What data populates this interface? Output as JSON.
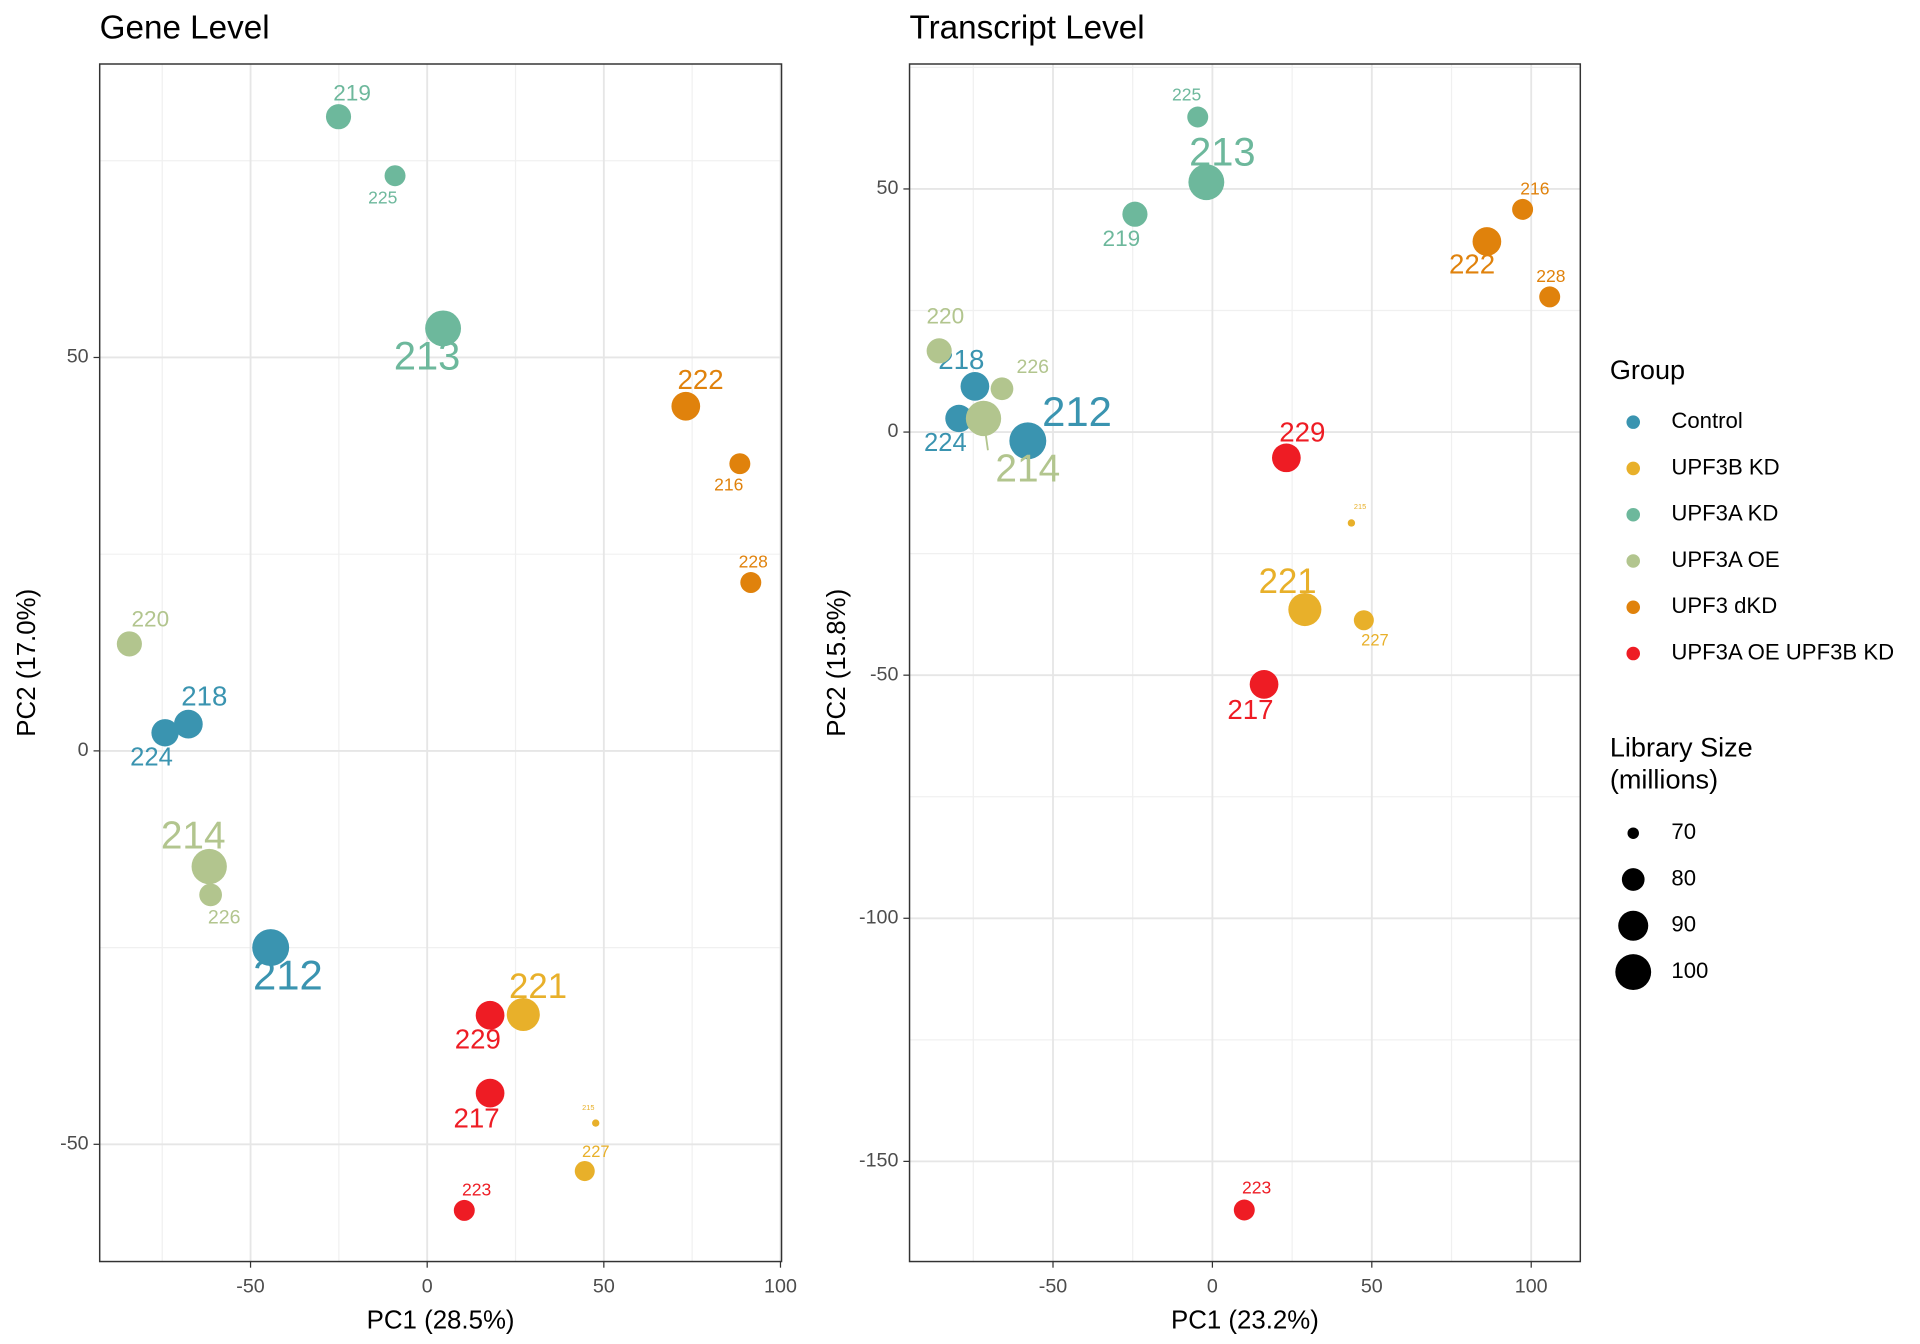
{
  "chart_data": [
    {
      "type": "scatter",
      "title": "Gene Level",
      "x_label": "PC1 (28.5%)",
      "y_label": "PC2 (17.0%)",
      "xlim": [
        -92.7,
        100.3
      ],
      "ylim": [
        -64.9,
        87.3
      ],
      "xticks": [
        -50,
        0,
        50,
        100
      ],
      "yticks": [
        -50,
        0,
        50
      ],
      "grid": true,
      "series": [
        {
          "name": "Control",
          "color": "#3a94b0",
          "labels": [
            "218",
            "224",
            "212"
          ],
          "x": [
            -67.6,
            -74.2,
            -44.3
          ],
          "y": [
            3.4,
            2.3,
            -25.0
          ],
          "size": [
            88,
            86,
            102
          ]
        },
        {
          "name": "UPF3B KD",
          "color": "#e8b02a",
          "labels": [
            "221",
            "215",
            "227"
          ],
          "x": [
            27.2,
            47.7,
            44.6
          ],
          "y": [
            -33.5,
            -47.3,
            -53.4
          ],
          "size": [
            95,
            68,
            77
          ]
        },
        {
          "name": "UPF3A KD",
          "color": "#6db89c",
          "labels": [
            "219",
            "225",
            "213"
          ],
          "x": [
            -25.1,
            -9.1,
            4.5
          ],
          "y": [
            80.6,
            73.1,
            53.7
          ],
          "size": [
            83,
            78,
            100
          ]
        },
        {
          "name": "UPF3A OE",
          "color": "#b2c58e",
          "labels": [
            "220",
            "214",
            "226"
          ],
          "x": [
            -84.3,
            -61.7,
            -61.3
          ],
          "y": [
            13.6,
            -14.7,
            -18.3
          ],
          "size": [
            83,
            99,
            80
          ]
        },
        {
          "name": "UPF3 dKD",
          "color": "#e0820c",
          "labels": [
            "222",
            "216",
            "228"
          ],
          "x": [
            73.2,
            88.5,
            91.6
          ],
          "y": [
            43.8,
            36.5,
            21.4
          ],
          "size": [
            88,
            78,
            78
          ]
        },
        {
          "name": "UPF3A OE UPF3B KD",
          "color": "#ee1c24",
          "labels": [
            "229",
            "217",
            "223"
          ],
          "x": [
            17.8,
            17.8,
            10.5
          ],
          "y": [
            -33.6,
            -43.5,
            -58.4
          ],
          "size": [
            88,
            88,
            78
          ]
        }
      ]
    },
    {
      "type": "scatter",
      "title": "Transcript Level",
      "x_label": "PC1 (23.2%)",
      "y_label": "PC2 (15.8%)",
      "xlim": [
        -95.0,
        115.4
      ],
      "ylim": [
        -170.6,
        75.7
      ],
      "xticks": [
        -50,
        0,
        50,
        100
      ],
      "yticks": [
        -150,
        -100,
        -50,
        0,
        50
      ],
      "grid": true,
      "series": [
        {
          "color": "#3a94b0",
          "labels": [
            "218",
            "224",
            "212"
          ],
          "x": [
            -74.5,
            -79.5,
            -57.9
          ],
          "y": [
            9.4,
            2.8,
            -1.8
          ],
          "size": [
            88,
            86,
            102
          ]
        },
        {
          "color": "#e8b02a",
          "labels": [
            "221",
            "215",
            "227"
          ],
          "x": [
            29.0,
            43.6,
            47.5
          ],
          "y": [
            -36.5,
            -18.7,
            -38.7
          ],
          "size": [
            95,
            68,
            77
          ]
        },
        {
          "color": "#6db89c",
          "labels": [
            "219",
            "225",
            "213"
          ],
          "x": [
            -24.3,
            -4.6,
            -1.9
          ],
          "y": [
            44.8,
            64.8,
            51.4
          ],
          "size": [
            83,
            78,
            100
          ]
        },
        {
          "color": "#b2c58e",
          "labels": [
            "220",
            "214",
            "226"
          ],
          "x": [
            -85.7,
            -71.8,
            -66.0
          ],
          "y": [
            16.7,
            2.8,
            8.9
          ],
          "size": [
            83,
            99,
            80
          ]
        },
        {
          "color": "#e0820c",
          "labels": [
            "222",
            "216",
            "228"
          ],
          "x": [
            86.1,
            97.3,
            105.8
          ],
          "y": [
            39.2,
            45.8,
            27.8
          ],
          "size": [
            88,
            78,
            78
          ]
        },
        {
          "color": "#ee1c24",
          "labels": [
            "229",
            "217",
            "223"
          ],
          "x": [
            23.2,
            16.2,
            10.0
          ],
          "y": [
            -5.3,
            -51.9,
            -160.0
          ],
          "size": [
            88,
            88,
            78
          ]
        }
      ]
    }
  ],
  "legend": {
    "group_title": "Group",
    "size_title": [
      "Library Size",
      "(millions)"
    ],
    "size_values": [
      70,
      80,
      90,
      100
    ]
  }
}
